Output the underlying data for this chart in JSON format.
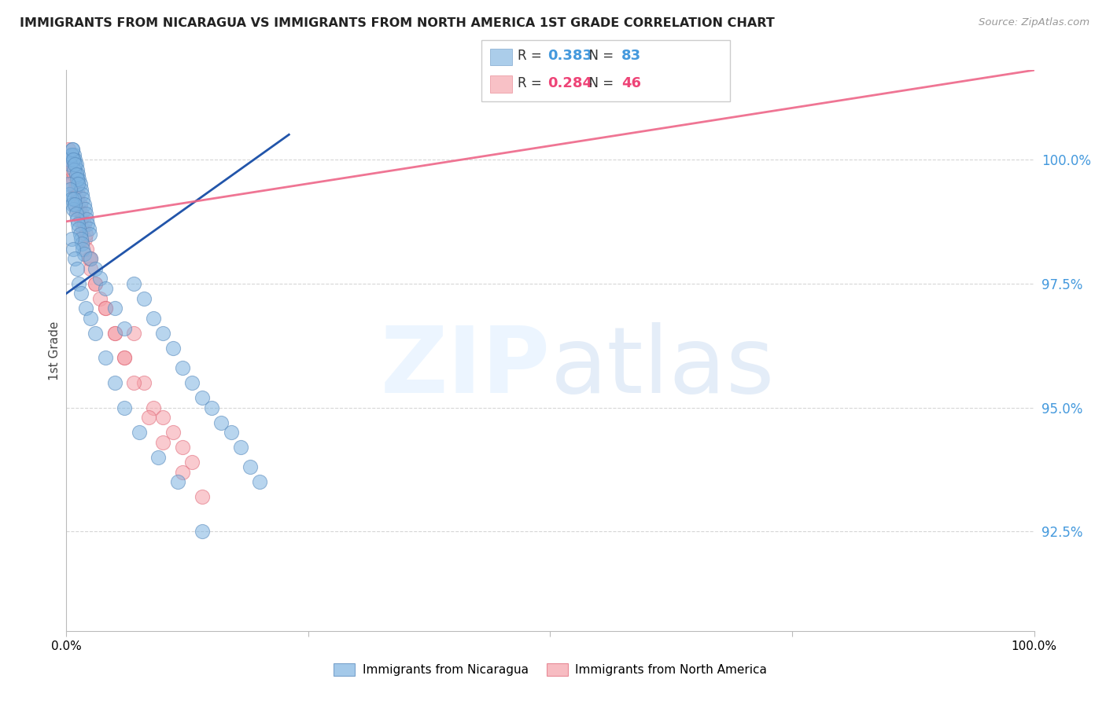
{
  "title": "IMMIGRANTS FROM NICARAGUA VS IMMIGRANTS FROM NORTH AMERICA 1ST GRADE CORRELATION CHART",
  "source": "Source: ZipAtlas.com",
  "ylabel": "1st Grade",
  "yticks": [
    92.5,
    95.0,
    97.5,
    100.0
  ],
  "ytick_labels": [
    "92.5%",
    "95.0%",
    "97.5%",
    "100.0%"
  ],
  "xlim": [
    0.0,
    100.0
  ],
  "ylim": [
    90.5,
    101.8
  ],
  "blue_R": 0.383,
  "blue_N": 83,
  "pink_R": 0.284,
  "pink_N": 46,
  "blue_color": "#7EB3E0",
  "pink_color": "#F5A0A8",
  "blue_edge": "#5588BB",
  "pink_edge": "#E06878",
  "blue_line_color": "#2255AA",
  "pink_line_color": "#EE6688",
  "legend_label_blue": "Immigrants from Nicaragua",
  "legend_label_pink": "Immigrants from North America",
  "blue_line_x0": 0.0,
  "blue_line_y0": 97.3,
  "blue_line_x1": 23.0,
  "blue_line_y1": 100.5,
  "pink_line_x0": 0.0,
  "pink_line_y0": 98.75,
  "pink_line_x1": 100.0,
  "pink_line_y1": 101.8,
  "blue_scatter_x": [
    0.5,
    0.6,
    0.7,
    0.8,
    0.9,
    1.0,
    1.1,
    1.2,
    1.3,
    1.4,
    1.5,
    1.6,
    1.7,
    1.8,
    1.9,
    2.0,
    2.1,
    2.2,
    2.3,
    2.4,
    0.3,
    0.4,
    0.5,
    0.6,
    0.7,
    0.8,
    0.9,
    1.0,
    1.1,
    1.2,
    0.2,
    0.3,
    0.4,
    0.5,
    0.6,
    0.7,
    0.8,
    0.9,
    1.0,
    1.1,
    1.2,
    1.3,
    1.4,
    1.5,
    1.6,
    1.7,
    1.8,
    2.5,
    3.0,
    3.5,
    4.0,
    5.0,
    6.0,
    7.0,
    8.0,
    9.0,
    10.0,
    11.0,
    12.0,
    13.0,
    14.0,
    15.0,
    16.0,
    17.0,
    18.0,
    19.0,
    20.0,
    0.5,
    0.7,
    0.9,
    1.1,
    1.3,
    1.5,
    2.0,
    2.5,
    3.0,
    4.0,
    5.0,
    6.0,
    7.5,
    9.5,
    11.5,
    14.0
  ],
  "blue_scatter_y": [
    100.1,
    100.2,
    100.0,
    100.1,
    100.0,
    99.9,
    99.8,
    99.7,
    99.6,
    99.5,
    99.4,
    99.3,
    99.2,
    99.1,
    99.0,
    98.9,
    98.8,
    98.7,
    98.6,
    98.5,
    100.0,
    99.9,
    100.1,
    100.2,
    100.0,
    99.8,
    99.9,
    99.7,
    99.6,
    99.5,
    99.5,
    99.3,
    99.4,
    99.2,
    99.1,
    99.0,
    99.2,
    99.1,
    98.9,
    98.8,
    98.7,
    98.6,
    98.5,
    98.4,
    98.3,
    98.2,
    98.1,
    98.0,
    97.8,
    97.6,
    97.4,
    97.0,
    96.6,
    97.5,
    97.2,
    96.8,
    96.5,
    96.2,
    95.8,
    95.5,
    95.2,
    95.0,
    94.7,
    94.5,
    94.2,
    93.8,
    93.5,
    98.4,
    98.2,
    98.0,
    97.8,
    97.5,
    97.3,
    97.0,
    96.8,
    96.5,
    96.0,
    95.5,
    95.0,
    94.5,
    94.0,
    93.5,
    92.5
  ],
  "pink_scatter_x": [
    0.3,
    0.5,
    0.7,
    0.9,
    1.1,
    1.3,
    1.5,
    1.7,
    1.9,
    2.1,
    2.3,
    2.5,
    3.0,
    3.5,
    4.0,
    5.0,
    6.0,
    7.0,
    8.0,
    9.0,
    10.0,
    11.0,
    12.0,
    13.0,
    0.4,
    0.6,
    0.8,
    1.0,
    1.2,
    1.4,
    1.6,
    1.8,
    2.0,
    2.5,
    3.0,
    4.0,
    5.0,
    6.0,
    7.0,
    8.5,
    10.0,
    12.0,
    14.0,
    0.2,
    0.5,
    1.0
  ],
  "pink_scatter_y": [
    100.0,
    99.8,
    99.6,
    99.4,
    99.2,
    99.0,
    98.8,
    98.6,
    98.4,
    98.2,
    98.0,
    97.8,
    97.5,
    97.2,
    97.0,
    96.5,
    96.0,
    96.5,
    95.5,
    95.0,
    94.8,
    94.5,
    94.2,
    93.9,
    100.1,
    99.9,
    99.7,
    99.5,
    99.3,
    99.1,
    98.9,
    98.7,
    98.5,
    98.0,
    97.5,
    97.0,
    96.5,
    96.0,
    95.5,
    94.8,
    94.3,
    93.7,
    93.2,
    100.2,
    99.5,
    99.0
  ]
}
